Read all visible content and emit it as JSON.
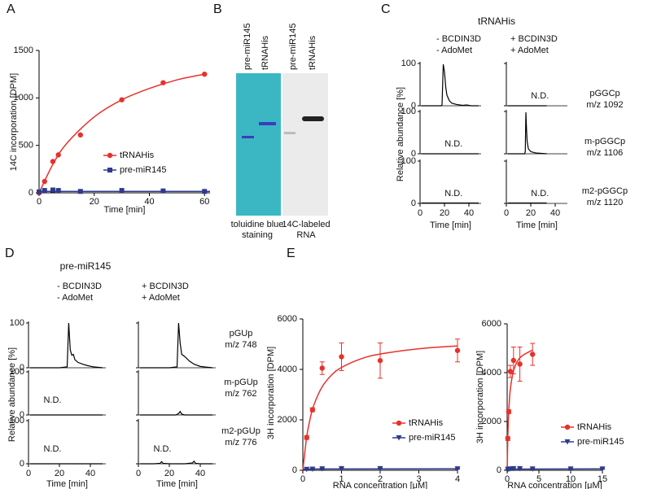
{
  "panel_labels": [
    "A",
    "B",
    "C",
    "D",
    "E"
  ],
  "gel": {
    "left": {
      "lanes": [
        "pre-miR145",
        "tRNAHis"
      ],
      "caption": [
        "toluidine blue",
        "staining"
      ]
    },
    "right": {
      "lanes": [
        "pre-miR145",
        "tRNAHis"
      ],
      "caption": [
        "14C-labeled",
        "RNA"
      ]
    }
  },
  "chart_data": [
    {
      "type": "line",
      "xlabel": "Time [min]",
      "ylabel": "14C incorporation [DPM]",
      "xlim": [
        0,
        62
      ],
      "xticks": [
        0,
        20,
        40,
        60
      ],
      "ylim": [
        0,
        1500
      ],
      "yticks": [
        0,
        500,
        1000,
        1500
      ],
      "legend": "lower right",
      "series": [
        {
          "name": "tRNAHis",
          "color": "#e8312a",
          "marker": "circle",
          "x": [
            0,
            2,
            5,
            7,
            15,
            30,
            45,
            60
          ],
          "values": [
            0,
            120,
            330,
            400,
            610,
            980,
            1160,
            1250
          ],
          "fit": {
            "x": [
              0,
              5,
              10,
              20,
              30,
              40,
              50,
              60
            ],
            "values": [
              0,
              300,
              520,
              800,
              980,
              1100,
              1190,
              1250
            ]
          }
        },
        {
          "name": "pre-miR145",
          "color": "#2e3a8c",
          "marker": "square",
          "x": [
            0,
            2,
            5,
            7,
            15,
            30,
            45,
            60
          ],
          "values": [
            10,
            25,
            30,
            25,
            15,
            25,
            20,
            15
          ],
          "fit": {
            "x": [
              0,
              62
            ],
            "values": [
              15,
              15
            ]
          }
        }
      ]
    },
    {
      "type": "chromatogram",
      "title": "tRNAHis",
      "xlabel": "Time [min]",
      "ylabel": "Relative abundance [%]",
      "xlim": [
        0,
        50
      ],
      "xticks": [
        0,
        20,
        40
      ],
      "ylim": [
        0,
        100
      ],
      "yticks": [
        0,
        100
      ],
      "color": "#000000",
      "columns": [
        [
          "- BCDIN3D",
          "- AdoMet"
        ],
        [
          "+ BCDIN3D",
          "+ AdoMet"
        ]
      ],
      "rows": [
        [
          "pGGCp",
          "m/z 1092"
        ],
        [
          "m-pGGCp",
          "m/z 1106"
        ],
        [
          "m2-pGGCp",
          "m/z 1120"
        ]
      ],
      "cells": [
        [
          {
            "x": [
              1,
              10,
              17,
              18,
              19,
              20,
              21,
              22,
              24,
              26,
              30,
              35,
              38,
              42,
              48
            ],
            "values": [
              0,
              0,
              0,
              2,
              98,
              80,
              45,
              25,
              12,
              6,
              3,
              1,
              2,
              0,
              0
            ]
          },
          {
            "x": [
              1,
              33
            ],
            "values": [
              0,
              0
            ],
            "note": "N.D."
          }
        ],
        [
          {
            "x": [
              1,
              48
            ],
            "values": [
              0,
              0
            ],
            "note": "N.D."
          },
          {
            "x": [
              1,
              15,
              15.5,
              16,
              16.5,
              17,
              18,
              20,
              24,
              33
            ],
            "values": [
              0,
              0,
              5,
              98,
              60,
              30,
              12,
              5,
              2,
              0
            ]
          }
        ],
        [
          {
            "x": [
              1,
              48
            ],
            "values": [
              1,
              1
            ],
            "note": "N.D."
          },
          {
            "x": [
              1,
              33
            ],
            "values": [
              1,
              1
            ],
            "note": "N.D."
          }
        ]
      ]
    },
    {
      "type": "chromatogram",
      "title": "pre-miR145",
      "xlabel": "Time [min]",
      "ylabel": "Relative abundance [%]",
      "xlim": [
        0,
        50
      ],
      "xticks": [
        0,
        20,
        40
      ],
      "ylim": [
        0,
        100
      ],
      "yticks": [
        0,
        100
      ],
      "color": "#000000",
      "columns": [
        [
          "- BCDIN3D",
          "- AdoMet"
        ],
        [
          "+ BCDIN3D",
          "+ AdoMet"
        ]
      ],
      "rows": [
        [
          "pGUp",
          "m/z 748"
        ],
        [
          "m-pGUp",
          "m/z 762"
        ],
        [
          "m2-pGUp",
          "m/z 776"
        ]
      ],
      "cells": [
        [
          {
            "x": [
              1,
              20,
              25,
              26,
              27,
              28,
              29,
              30,
              32,
              35,
              38,
              42,
              48
            ],
            "values": [
              0,
              0,
              2,
              100,
              40,
              28,
              30,
              18,
              12,
              8,
              5,
              2,
              0
            ]
          },
          {
            "x": [
              1,
              20,
              25,
              26,
              27,
              28,
              30,
              33,
              36,
              40,
              48
            ],
            "values": [
              0,
              0,
              2,
              100,
              55,
              30,
              25,
              15,
              8,
              3,
              0
            ]
          }
        ],
        [
          {
            "x": [
              1,
              48
            ],
            "values": [
              0,
              0
            ],
            "note": "N.D."
          },
          {
            "x": [
              1,
              24,
              26,
              27,
              28,
              30,
              48
            ],
            "values": [
              0,
              0,
              3,
              8,
              2,
              0,
              0
            ]
          }
        ],
        [
          {
            "x": [
              1,
              48
            ],
            "values": [
              0,
              0
            ],
            "note": "N.D."
          },
          {
            "x": [
              1,
              10,
              14,
              15,
              16,
              20,
              30,
              35,
              36,
              37,
              40,
              48
            ],
            "values": [
              0,
              0,
              1,
              5,
              1,
              0,
              0,
              2,
              6,
              1,
              0,
              0
            ],
            "note": "N.D."
          }
        ]
      ]
    },
    {
      "type": "scatter",
      "xlabel": "RNA concentration [μM]",
      "ylabel": "3H incorporation [DPM]",
      "xlim": [
        0,
        4
      ],
      "xticks": [
        0,
        1,
        2,
        3,
        4
      ],
      "ylim": [
        0,
        6000
      ],
      "yticks": [
        0,
        2000,
        4000,
        6000
      ],
      "legend": "lower right",
      "series": [
        {
          "name": "tRNAHis",
          "color": "#e8312a",
          "marker": "circle",
          "x": [
            0.1,
            0.25,
            0.5,
            1,
            2,
            4
          ],
          "values": [
            1300,
            2400,
            4050,
            4500,
            4350,
            4750
          ],
          "errors": [
            80,
            80,
            250,
            550,
            700,
            450
          ],
          "fit": {
            "x": [
              0,
              0.1,
              0.2,
              0.3,
              0.5,
              0.75,
              1,
              1.5,
              2,
              3,
              4
            ],
            "values": [
              0,
              1325,
              2120,
              2650,
              3312,
              3786,
              4077,
              4418,
              4609,
              4818,
              4930
            ]
          }
        },
        {
          "name": "pre-miR145",
          "color": "#2e3a8c",
          "marker": "triangle",
          "x": [
            0.1,
            0.25,
            0.5,
            1,
            2,
            4
          ],
          "values": [
            40,
            50,
            60,
            70,
            70,
            60
          ],
          "errors": [
            20,
            20,
            20,
            20,
            20,
            20
          ],
          "fit": {
            "x": [
              0,
              4
            ],
            "values": [
              50,
              60
            ]
          }
        }
      ]
    },
    {
      "type": "scatter",
      "xlabel": "RNA concentration [μM]",
      "ylabel": "3H incorporation [DPM]",
      "xlim": [
        0,
        15
      ],
      "xticks": [
        0,
        5,
        10,
        15
      ],
      "ylim": [
        0,
        6000
      ],
      "yticks": [
        0,
        2000,
        4000,
        6000
      ],
      "legend": "lower right",
      "series": [
        {
          "name": "tRNAHis",
          "color": "#e8312a",
          "marker": "circle",
          "x": [
            0.1,
            0.25,
            0.5,
            1,
            2,
            4
          ],
          "values": [
            1300,
            2400,
            4050,
            4500,
            4350,
            4750
          ],
          "errors": [
            80,
            80,
            250,
            550,
            700,
            450
          ],
          "fit": {
            "x": [
              0,
              0.1,
              0.2,
              0.3,
              0.5,
              1,
              2,
              4
            ],
            "values": [
              0,
              1325,
              2120,
              2650,
              3312,
              4077,
              4609,
              4930
            ]
          }
        },
        {
          "name": "pre-miR145",
          "color": "#2e3a8c",
          "marker": "triangle",
          "x": [
            0.1,
            0.25,
            0.5,
            1,
            2,
            4,
            10,
            15
          ],
          "values": [
            40,
            50,
            60,
            70,
            70,
            60,
            60,
            60
          ],
          "errors": [
            20,
            20,
            20,
            20,
            20,
            20,
            20,
            20
          ],
          "fit": {
            "x": [
              0,
              15
            ],
            "values": [
              50,
              60
            ]
          }
        }
      ]
    }
  ]
}
